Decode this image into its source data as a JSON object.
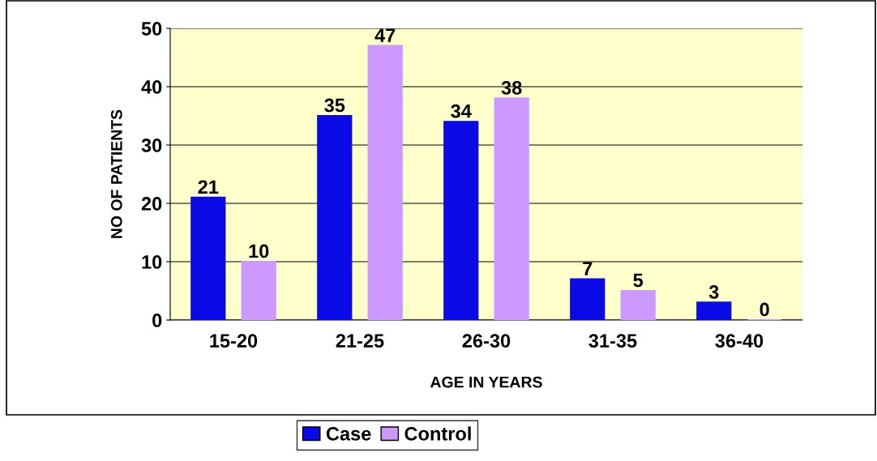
{
  "chart_data": {
    "type": "bar",
    "xlabel": "AGE IN YEARS",
    "ylabel": "NO OF PATIENTS",
    "categories": [
      "15-20",
      "21-25",
      "26-30",
      "31-35",
      "36-40"
    ],
    "series": [
      {
        "name": "Case",
        "color": "#0a0ae6",
        "values": [
          21,
          35,
          34,
          7,
          3
        ]
      },
      {
        "name": "Control",
        "color": "#cc99ff",
        "values": [
          10,
          47,
          38,
          5,
          0
        ]
      }
    ],
    "ylim": [
      0,
      50
    ],
    "yticks": [
      0,
      10,
      20,
      30,
      40,
      50
    ],
    "grid": "y",
    "legend": "bottom",
    "data_labels": true
  }
}
